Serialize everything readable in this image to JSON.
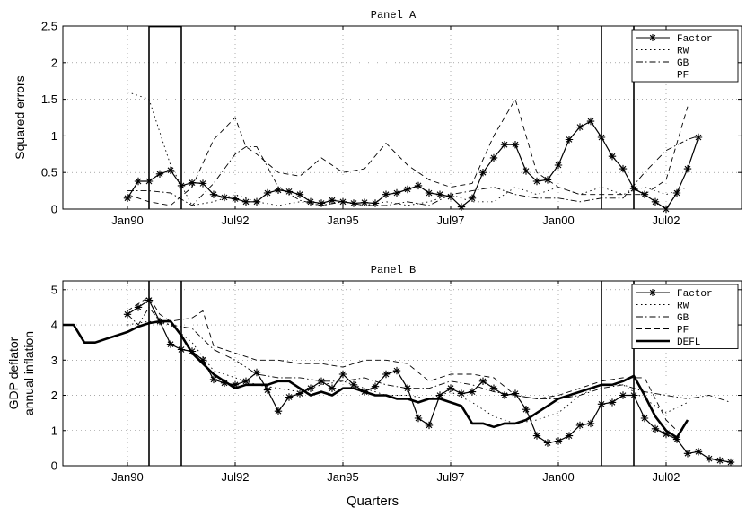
{
  "x_axis_label": "Quarters",
  "chart_data": [
    {
      "type": "line",
      "title": "Panel A",
      "xlabel": "",
      "ylabel": "Squared errors",
      "xlim": [
        1988.5,
        2004.25
      ],
      "ylim": [
        0,
        2.5
      ],
      "x_ticks": [
        {
          "v": 1990.0,
          "label": "Jan90"
        },
        {
          "v": 1992.5,
          "label": "Jul92"
        },
        {
          "v": 1995.0,
          "label": "Jan95"
        },
        {
          "v": 1997.5,
          "label": "Jul97"
        },
        {
          "v": 2000.0,
          "label": "Jan00"
        },
        {
          "v": 2002.5,
          "label": "Jul02"
        }
      ],
      "y_ticks": [
        0,
        0.5,
        1,
        1.5,
        2,
        2.5
      ],
      "y_tick_labels": [
        "0",
        "0.5",
        "1",
        "1.5",
        "2",
        "2.5"
      ],
      "vlines": [
        1990.5,
        1991.25,
        2001.0,
        2001.75
      ],
      "grid": true,
      "legend_position": "top-right",
      "series": [
        {
          "name": "Factor",
          "style": "star-solid",
          "x": [
            1990.0,
            1990.25,
            1990.5,
            1990.75,
            1991.0,
            1991.25,
            1991.5,
            1991.75,
            1992.0,
            1992.25,
            1992.5,
            1992.75,
            1993.0,
            1993.25,
            1993.5,
            1993.75,
            1994.0,
            1994.25,
            1994.5,
            1994.75,
            1995.0,
            1995.25,
            1995.5,
            1995.75,
            1996.0,
            1996.25,
            1996.5,
            1996.75,
            1997.0,
            1997.25,
            1997.5,
            1997.75,
            1998.0,
            1998.25,
            1998.5,
            1998.75,
            1999.0,
            1999.25,
            1999.5,
            1999.75,
            2000.0,
            2000.25,
            2000.5,
            2000.75,
            2001.0,
            2001.25,
            2001.5,
            2001.75,
            2002.0,
            2002.25,
            2002.5,
            2002.75,
            2003.0,
            2003.25
          ],
          "y": [
            0.15,
            0.38,
            0.38,
            0.48,
            0.53,
            0.32,
            0.36,
            0.35,
            0.2,
            0.16,
            0.14,
            0.1,
            0.1,
            0.22,
            0.26,
            0.24,
            0.2,
            0.1,
            0.08,
            0.12,
            0.1,
            0.08,
            0.09,
            0.08,
            0.2,
            0.22,
            0.27,
            0.32,
            0.22,
            0.2,
            0.17,
            0.03,
            0.15,
            0.5,
            0.7,
            0.88,
            0.88,
            0.52,
            0.38,
            0.4,
            0.6,
            0.95,
            1.12,
            1.2,
            0.98,
            0.72,
            0.55,
            0.28,
            0.2,
            0.1,
            0.0,
            0.22,
            0.55,
            0.98
          ]
        },
        {
          "name": "RW",
          "style": "dotted",
          "x": [
            1990.0,
            1990.5,
            1991.0,
            1991.5,
            1992.0,
            1992.5,
            1993.0,
            1993.5,
            1994.0,
            1994.5,
            1995.0,
            1995.5,
            1996.0,
            1996.5,
            1997.0,
            1997.5,
            1998.0,
            1998.5,
            1999.0,
            1999.5,
            2000.0,
            2000.5,
            2001.0,
            2001.5,
            2002.0,
            2002.5,
            2003.0
          ],
          "y": [
            1.6,
            1.5,
            0.6,
            0.05,
            0.1,
            0.2,
            0.1,
            0.05,
            0.1,
            0.05,
            0.1,
            0.05,
            0.1,
            0.05,
            0.1,
            0.2,
            0.1,
            0.1,
            0.3,
            0.2,
            0.3,
            0.2,
            0.3,
            0.2,
            0.3,
            0.2,
            0.3
          ]
        },
        {
          "name": "GB",
          "style": "dash-dot",
          "x": [
            1990.0,
            1990.5,
            1991.0,
            1991.5,
            1992.0,
            1992.5,
            1992.75,
            1993.0,
            1993.5,
            1994.0,
            1994.5,
            1995.0,
            1995.5,
            1996.0,
            1996.5,
            1997.0,
            1997.5,
            1998.0,
            1998.5,
            1999.0,
            1999.5,
            2000.0,
            2000.5,
            2001.0,
            2001.5,
            2002.0,
            2002.5,
            2003.0,
            2003.25
          ],
          "y": [
            0.25,
            0.25,
            0.22,
            0.05,
            0.35,
            0.75,
            0.85,
            0.85,
            0.3,
            0.12,
            0.05,
            0.1,
            0.05,
            0.05,
            0.1,
            0.05,
            0.2,
            0.25,
            0.3,
            0.2,
            0.15,
            0.15,
            0.1,
            0.15,
            0.15,
            0.5,
            0.8,
            0.95,
            1.0
          ]
        },
        {
          "name": "PF",
          "style": "dashed",
          "x": [
            1990.0,
            1990.5,
            1991.0,
            1991.5,
            1992.0,
            1992.5,
            1992.75,
            1993.0,
            1993.5,
            1994.0,
            1994.5,
            1995.0,
            1995.5,
            1996.0,
            1996.5,
            1997.0,
            1997.5,
            1998.0,
            1998.5,
            1999.0,
            1999.5,
            2000.0,
            2000.5,
            2001.0,
            2001.5,
            2002.0,
            2002.5,
            2003.0
          ],
          "y": [
            0.2,
            0.1,
            0.05,
            0.3,
            0.95,
            1.25,
            0.85,
            0.75,
            0.5,
            0.45,
            0.7,
            0.5,
            0.55,
            0.9,
            0.6,
            0.4,
            0.3,
            0.35,
            1.0,
            1.5,
            0.5,
            0.3,
            0.2,
            0.2,
            0.2,
            0.2,
            0.4,
            1.4
          ]
        }
      ]
    },
    {
      "type": "line",
      "title": "Panel B",
      "xlabel": "",
      "ylabel": [
        "GDP deflator",
        "annual inflation"
      ],
      "xlim": [
        1988.5,
        2004.25
      ],
      "ylim": [
        0,
        5.25
      ],
      "x_ticks": [
        {
          "v": 1990.0,
          "label": "Jan90"
        },
        {
          "v": 1992.5,
          "label": "Jul92"
        },
        {
          "v": 1995.0,
          "label": "Jan95"
        },
        {
          "v": 1997.5,
          "label": "Jul97"
        },
        {
          "v": 2000.0,
          "label": "Jan00"
        },
        {
          "v": 2002.5,
          "label": "Jul02"
        }
      ],
      "y_ticks": [
        0,
        1,
        2,
        3,
        4,
        5
      ],
      "y_tick_labels": [
        "0",
        "1",
        "2",
        "3",
        "4",
        "5"
      ],
      "vlines": [
        1990.5,
        1991.25,
        2001.0,
        2001.75
      ],
      "grid": true,
      "legend_position": "top-right",
      "series": [
        {
          "name": "Factor",
          "style": "star-solid",
          "x": [
            1990.0,
            1990.25,
            1990.5,
            1990.75,
            1991.0,
            1991.25,
            1991.5,
            1991.75,
            1992.0,
            1992.25,
            1992.5,
            1992.75,
            1993.0,
            1993.25,
            1993.5,
            1993.75,
            1994.0,
            1994.25,
            1994.5,
            1994.75,
            1995.0,
            1995.25,
            1995.5,
            1995.75,
            1996.0,
            1996.25,
            1996.5,
            1996.75,
            1997.0,
            1997.25,
            1997.5,
            1997.75,
            1998.0,
            1998.25,
            1998.5,
            1998.75,
            1999.0,
            1999.25,
            1999.5,
            1999.75,
            2000.0,
            2000.25,
            2000.5,
            2000.75,
            2001.0,
            2001.25,
            2001.5,
            2001.75,
            2002.0,
            2002.25,
            2002.5,
            2002.75,
            2003.0,
            2003.25,
            2003.5,
            2003.75,
            2004.0
          ],
          "y": [
            4.3,
            4.5,
            4.7,
            4.1,
            3.45,
            3.3,
            3.25,
            3.0,
            2.45,
            2.35,
            2.3,
            2.4,
            2.65,
            2.15,
            1.55,
            1.95,
            2.05,
            2.2,
            2.4,
            2.2,
            2.6,
            2.3,
            2.1,
            2.25,
            2.6,
            2.7,
            2.2,
            1.35,
            1.15,
            2.0,
            2.2,
            2.05,
            2.1,
            2.4,
            2.2,
            2.0,
            2.05,
            1.6,
            0.85,
            0.65,
            0.7,
            0.85,
            1.15,
            1.2,
            1.75,
            1.8,
            2.0,
            2.0,
            1.35,
            1.05,
            0.9,
            0.75,
            0.35,
            0.4,
            0.2,
            0.15,
            0.1
          ]
        },
        {
          "name": "RW",
          "style": "dotted",
          "x": [
            1990.0,
            1990.5,
            1991.0,
            1991.5,
            1992.0,
            1992.5,
            1993.0,
            1993.5,
            1994.0,
            1994.5,
            1995.0,
            1995.5,
            1996.0,
            1996.5,
            1997.0,
            1997.5,
            1998.0,
            1998.5,
            1999.0,
            1999.5,
            2000.0,
            2000.5,
            2001.0,
            2001.5,
            2002.0,
            2002.5,
            2003.0
          ],
          "y": [
            4.0,
            4.1,
            4.0,
            3.5,
            2.7,
            2.5,
            2.3,
            2.2,
            2.1,
            2.3,
            2.4,
            2.2,
            2.0,
            2.0,
            1.9,
            2.1,
            1.8,
            1.4,
            1.2,
            1.3,
            1.5,
            2.0,
            2.3,
            2.3,
            1.9,
            1.5,
            1.8
          ]
        },
        {
          "name": "GB",
          "style": "dash-dot",
          "x": [
            1990.0,
            1990.25,
            1990.5,
            1990.75,
            1991.0,
            1991.5,
            1992.0,
            1992.5,
            1993.0,
            1993.5,
            1994.0,
            1994.5,
            1995.0,
            1995.5,
            1996.0,
            1996.5,
            1997.0,
            1997.5,
            1998.0,
            1998.5,
            1999.0,
            1999.5,
            2000.0,
            2000.5,
            2001.0,
            2001.5,
            2002.0,
            2002.5,
            2003.0,
            2003.5,
            2004.0
          ],
          "y": [
            4.3,
            4.0,
            4.5,
            4.1,
            4.0,
            3.9,
            3.3,
            3.0,
            2.6,
            2.5,
            2.5,
            2.4,
            2.4,
            2.5,
            2.3,
            2.2,
            2.2,
            2.4,
            2.3,
            2.1,
            2.0,
            1.9,
            1.9,
            2.0,
            2.2,
            2.3,
            2.1,
            2.0,
            1.9,
            2.0,
            1.8
          ]
        },
        {
          "name": "PF",
          "style": "dashed",
          "x": [
            1990.0,
            1990.25,
            1990.5,
            1990.75,
            1991.0,
            1991.5,
            1991.75,
            1992.0,
            1992.5,
            1993.0,
            1993.5,
            1994.0,
            1994.5,
            1995.0,
            1995.5,
            1996.0,
            1996.5,
            1997.0,
            1997.5,
            1998.0,
            1998.5,
            1999.0,
            1999.5,
            2000.0,
            2000.5,
            2001.0,
            2001.5,
            2002.0,
            2002.5,
            2002.75
          ],
          "y": [
            4.4,
            4.6,
            4.8,
            4.3,
            4.1,
            4.2,
            4.4,
            3.4,
            3.2,
            3.0,
            3.0,
            2.9,
            2.9,
            2.8,
            3.0,
            3.0,
            2.9,
            2.4,
            2.6,
            2.6,
            2.5,
            2.0,
            1.9,
            2.0,
            2.2,
            2.4,
            2.5,
            2.5,
            1.3,
            1.0
          ]
        },
        {
          "name": "DEFL",
          "style": "thick-solid",
          "x": [
            1988.5,
            1988.75,
            1989.0,
            1989.25,
            1989.5,
            1989.75,
            1990.0,
            1990.25,
            1990.5,
            1990.75,
            1991.0,
            1991.25,
            1991.5,
            1991.75,
            1992.0,
            1992.25,
            1992.5,
            1992.75,
            1993.0,
            1993.25,
            1993.5,
            1993.75,
            1994.0,
            1994.25,
            1994.5,
            1994.75,
            1995.0,
            1995.25,
            1995.5,
            1995.75,
            1996.0,
            1996.25,
            1996.5,
            1996.75,
            1997.0,
            1997.25,
            1997.5,
            1997.75,
            1998.0,
            1998.25,
            1998.5,
            1998.75,
            1999.0,
            1999.25,
            1999.5,
            1999.75,
            2000.0,
            2000.25,
            2000.5,
            2000.75,
            2001.0,
            2001.25,
            2001.5,
            2001.75,
            2002.0,
            2002.25,
            2002.5,
            2002.75,
            2003.0
          ],
          "y": [
            4.0,
            4.0,
            3.5,
            3.5,
            3.6,
            3.7,
            3.8,
            3.95,
            4.05,
            4.1,
            4.1,
            3.7,
            3.2,
            2.9,
            2.6,
            2.4,
            2.2,
            2.3,
            2.3,
            2.3,
            2.4,
            2.4,
            2.2,
            2.0,
            2.1,
            2.0,
            2.2,
            2.2,
            2.1,
            2.0,
            2.0,
            1.9,
            1.9,
            1.8,
            1.9,
            1.9,
            1.8,
            1.7,
            1.2,
            1.2,
            1.1,
            1.2,
            1.2,
            1.3,
            1.5,
            1.7,
            1.9,
            2.0,
            2.1,
            2.2,
            2.3,
            2.3,
            2.4,
            2.55,
            2.0,
            1.4,
            1.0,
            0.8,
            1.3
          ]
        }
      ]
    }
  ]
}
